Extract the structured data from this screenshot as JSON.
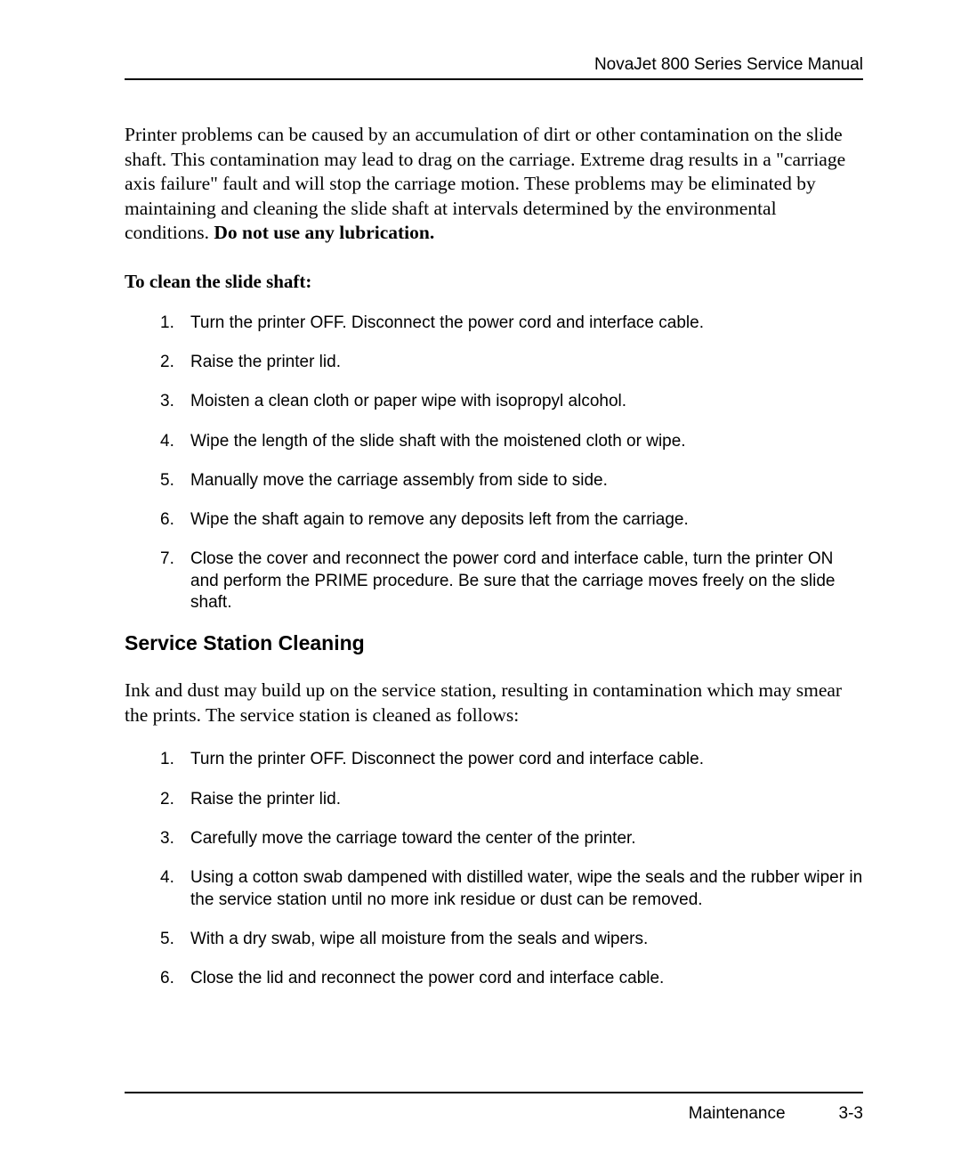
{
  "header": {
    "title": "NovaJet 800 Series Service Manual"
  },
  "intro": {
    "text": "Printer problems can be caused by an accumulation of dirt or other contamination on the slide shaft.  This contamination may lead to drag on the carriage.  Extreme drag results in a \"carriage axis failure\" fault and will stop the carriage motion. These problems may be eliminated by maintaining and cleaning the slide shaft at intervals determined by the environmental conditions.  ",
    "bold_tail": "Do not use any lubrication."
  },
  "procedure1": {
    "heading": "To clean the slide shaft:",
    "steps": [
      "Turn the printer OFF.  Disconnect the power cord and interface cable.",
      "Raise the printer lid.",
      "Moisten a clean cloth or paper wipe with isopropyl alcohol.",
      "Wipe the length of the slide shaft with the moistened cloth or wipe.",
      "Manually move the carriage assembly from side to side.",
      "Wipe the shaft again to remove any deposits left from the carriage.",
      "Close the cover and reconnect the power cord and interface cable, turn the printer ON and perform the PRIME procedure.  Be sure that the carriage moves freely on the slide shaft."
    ]
  },
  "section2": {
    "heading": "Service Station Cleaning",
    "intro": "Ink and dust may build up on the service station, resulting in contamination which may smear the prints.  The service station is cleaned as follows:",
    "steps": [
      "Turn the printer OFF.  Disconnect the power cord and interface cable.",
      "Raise the printer lid.",
      "Carefully move the carriage toward the center of the printer.",
      "Using a cotton swab dampened with distilled water, wipe the seals and the rubber wiper in the service station until no more ink residue or dust can be removed.",
      "With a dry swab, wipe all moisture from the seals and wipers.",
      "Close the lid and reconnect the power cord and interface cable."
    ]
  },
  "footer": {
    "section": "Maintenance",
    "page": "3-3"
  },
  "style": {
    "body_font": "Times New Roman",
    "ui_font": "Arial",
    "text_color": "#000000",
    "bg_color": "#ffffff",
    "body_size_pt": 16,
    "list_size_pt": 14,
    "heading_size_pt": 17
  }
}
